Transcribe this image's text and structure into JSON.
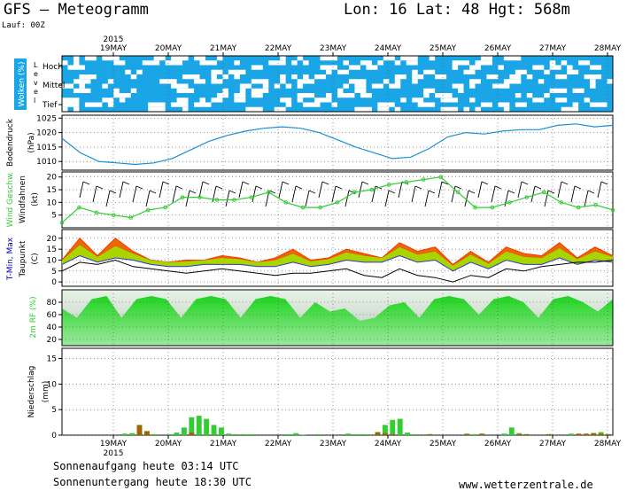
{
  "header": {
    "model": "GFS",
    "dash": "—",
    "product": "Meteogramm",
    "location": "Lon: 16 Lat: 48 Hgt: 568m",
    "run": "Lauf: 00Z"
  },
  "footer": {
    "sunrise": "Sonnenaufgang heute 03:14 UTC",
    "sunset": "Sonnenuntergang heute 18:30 UTC",
    "site": "www.wetterzentrale.de"
  },
  "colors": {
    "cloud": "#1aa6e6",
    "wind": "#33cc33",
    "humidity": "#2ed12e",
    "tmax": "#ff3300",
    "tmin": "#ffcc00",
    "rain": "#33cc33",
    "conv": "#996600",
    "pressure": "#1a8fd6"
  },
  "chart_data": {
    "type": "line",
    "x": [
      "19MAY",
      "20MAY",
      "21MAY",
      "22MAY",
      "23MAY",
      "24MAY",
      "25MAY",
      "26MAY",
      "27MAY",
      "28MAY"
    ],
    "year": "2015",
    "panels": {
      "clouds": {
        "ylabel": "Wolken (%)",
        "axis_word": "Level",
        "levels": [
          "Hoch",
          "Mittel",
          "Tief"
        ]
      },
      "pressure": {
        "ylabel": "Bodendruck",
        "unit": "(hPa)",
        "ylim": [
          1007,
          1026
        ],
        "ticks": [
          1010,
          1015,
          1020,
          1025
        ],
        "values": [
          1018,
          1013,
          1010,
          1009.5,
          1009,
          1009.5,
          1011,
          1014,
          1017,
          1019,
          1020.5,
          1021.5,
          1022,
          1021.5,
          1020,
          1017.5,
          1015,
          1013,
          1011,
          1011.5,
          1014.5,
          1018.5,
          1020,
          1019.5,
          1020.5,
          1021,
          1021,
          1022.5,
          1023,
          1022,
          1022.5
        ]
      },
      "wind": {
        "ylabel": "Wind Geschw.",
        "ylabel2": "Windfahnen",
        "unit": "(kt)",
        "ylim": [
          0,
          22
        ],
        "ticks": [
          5,
          10,
          15,
          20
        ],
        "values": [
          2,
          8,
          6,
          5,
          4,
          7,
          8,
          12,
          12,
          11,
          11,
          12,
          14,
          10,
          8,
          8,
          10,
          14,
          15,
          17,
          18,
          19,
          20,
          14,
          8,
          8,
          10,
          12,
          14,
          10,
          8,
          9,
          7
        ]
      },
      "temperature": {
        "ylabel": "T-Min, Max",
        "ylabel2": "Taupunkt",
        "unit": "(C)",
        "ylim": [
          -2,
          24
        ],
        "ticks": [
          0,
          5,
          10,
          15,
          20
        ],
        "tmax": [
          10,
          20,
          12,
          20,
          14,
          10,
          9,
          10,
          10,
          12,
          11,
          9,
          11,
          15,
          10,
          11,
          15,
          13,
          11,
          18,
          14,
          16,
          8,
          14,
          9,
          16,
          13,
          12,
          18,
          11,
          16,
          12
        ],
        "tmin": [
          8,
          12,
          9,
          11,
          10,
          8,
          7,
          7,
          8,
          8,
          8,
          7,
          7,
          9,
          7,
          8,
          10,
          9,
          9,
          12,
          9,
          10,
          5,
          9,
          6,
          10,
          8,
          8,
          11,
          8,
          10,
          9
        ],
        "dewpoint": [
          5,
          9,
          8,
          10,
          7,
          6,
          5,
          4,
          5,
          6,
          5,
          4,
          3,
          4,
          4,
          5,
          6,
          3,
          2,
          6,
          3,
          2,
          0,
          3,
          2,
          6,
          5,
          7,
          8,
          9,
          9,
          10
        ]
      },
      "humidity": {
        "ylabel": "2m RF (%)",
        "ylim": [
          10,
          100
        ],
        "ticks": [
          20,
          40,
          60,
          80
        ],
        "values": [
          70,
          55,
          85,
          90,
          55,
          85,
          90,
          85,
          55,
          85,
          90,
          85,
          55,
          85,
          90,
          85,
          55,
          80,
          65,
          70,
          50,
          55,
          75,
          80,
          55,
          85,
          90,
          85,
          60,
          85,
          90,
          80,
          55,
          85,
          90,
          80,
          65,
          85
        ]
      },
      "precipitation": {
        "ylabel": "Niederschlag",
        "unit": "(mm)",
        "ylim": [
          0,
          17
        ],
        "ticks": [
          0,
          5,
          10,
          15
        ],
        "rain": [
          0,
          0,
          0,
          0,
          0,
          0,
          0,
          0,
          0.3,
          0.4,
          1.0,
          0.2,
          0.2,
          0,
          0.2,
          0.5,
          1.5,
          3.5,
          3.8,
          3.2,
          2.0,
          1.5,
          0.3,
          0.2,
          0.2,
          0.2,
          0,
          0,
          0,
          0,
          0.2,
          0.4,
          0.1,
          0,
          0.2,
          0,
          0,
          0,
          0.3,
          0.2,
          0.2,
          0,
          0.2,
          2.0,
          3.0,
          3.2,
          0.5,
          0.2,
          0,
          0.2,
          0,
          0,
          0,
          0,
          0.3,
          0.2,
          0.2,
          0,
          0,
          0.3,
          1.5,
          0.4,
          0.2,
          0,
          0,
          0.2,
          0,
          0,
          0.3,
          0.2,
          0.2,
          0.4,
          0.6,
          0.2
        ],
        "conv": [
          0,
          0,
          0,
          0,
          0,
          0,
          0,
          0,
          0,
          0,
          2.0,
          0.8,
          0,
          0,
          0,
          0,
          0,
          0.5,
          0,
          0,
          0,
          0,
          0,
          0,
          0,
          0,
          0,
          0,
          0,
          0,
          0,
          0,
          0,
          0,
          0,
          0,
          0,
          0,
          0,
          0,
          0,
          0,
          0.6,
          0.4,
          0.2,
          0,
          0,
          0,
          0,
          0.2,
          0,
          0,
          0,
          0,
          0.2,
          0,
          0.3,
          0,
          0,
          0,
          0,
          0.2,
          0.2,
          0,
          0,
          0.2,
          0,
          0,
          0,
          0.3,
          0.3,
          0.4,
          0.3,
          0.2
        ]
      }
    }
  }
}
